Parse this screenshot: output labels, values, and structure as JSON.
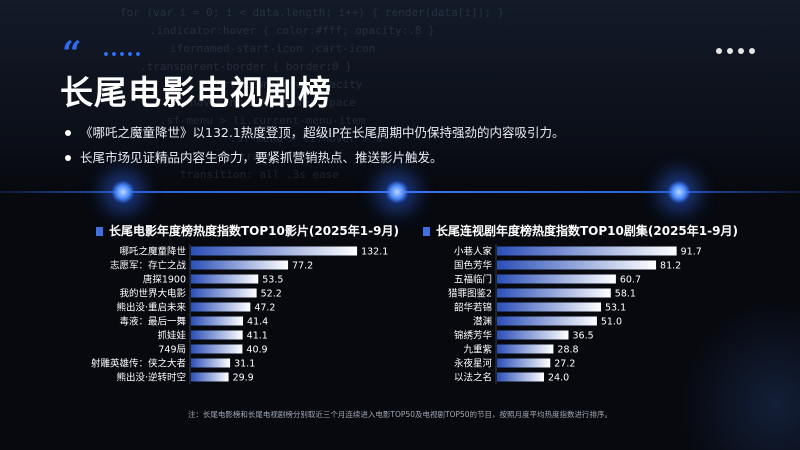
{
  "slide": {
    "title": "长尾电影电视剧榜",
    "bullets": [
      "《哪吒之魔童降世》以132.1热度登顶，超级IP在长尾周期中仍保持强劲的内容吸引力。",
      "长尾市场见证精品内容生命力，要紧抓营销热点、推送影片触发。"
    ],
    "footnote": "注：长尾电影榜和长尾电视剧榜分别取近三个月连续进入电影TOP50及电视剧TOP50的节目，按照月度平均热度指数进行排序。"
  },
  "colors": {
    "accent": "#2f6cf0",
    "bar_start": "#2b4fb8",
    "bar_end": "#ffffff"
  },
  "chart_data": [
    {
      "type": "bar",
      "orientation": "horizontal",
      "title": "长尾电影年度榜热度指数TOP10影片(2025年1-9月)",
      "categories": [
        "哪吒之魔童降世",
        "志愿军：存亡之战",
        "唐探1900",
        "我的世界大电影",
        "熊出没·重启未来",
        "毒液：最后一舞",
        "抓娃娃",
        "749局",
        "射雕英雄传：侠之大者",
        "熊出没·逆转时空"
      ],
      "values": [
        132.1,
        77.2,
        53.5,
        52.2,
        47.2,
        41.4,
        41.1,
        40.9,
        31.1,
        29.9
      ],
      "value_labels": [
        "132.1",
        "77.2",
        "53.5",
        "52.2",
        "47.2",
        "41.4",
        "41.1",
        "40.9",
        "31.1",
        "29.9"
      ],
      "xlim": [
        0,
        140
      ],
      "grid": false
    },
    {
      "type": "bar",
      "orientation": "horizontal",
      "title": "长尾连视剧年度榜热度指数TOP10剧集(2025年1-9月)",
      "categories": [
        "小巷人家",
        "国色芳华",
        "五福临门",
        "猎罪图鉴2",
        "韶华若锦",
        "潜渊",
        "锦绣芳华",
        "九重紫",
        "永夜星河",
        "以法之名"
      ],
      "values": [
        91.7,
        81.2,
        60.7,
        58.1,
        53.1,
        51.0,
        36.5,
        28.8,
        27.2,
        24.0
      ],
      "value_labels": [
        "91.7",
        "81.2",
        "60.7",
        "58.1",
        "53.1",
        "51.0",
        "36.5",
        "28.8",
        "27.2",
        "24.0"
      ],
      "xlim": [
        0,
        97
      ],
      "grid": false
    }
  ]
}
